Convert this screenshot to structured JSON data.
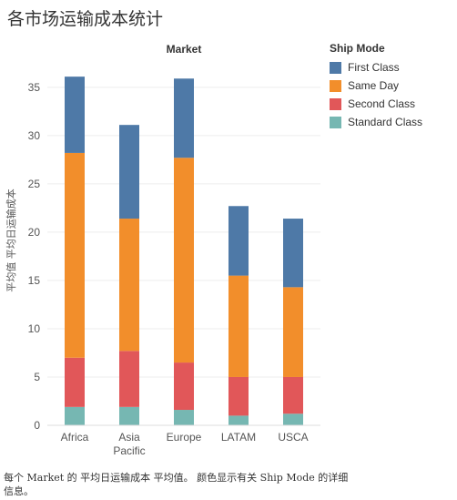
{
  "title": "各市场运输成本统计",
  "caption": "每个 Market 的 平均日运输成本 平均值。 颜色显示有关 Ship Mode 的详细信息。",
  "colors": {
    "First Class": "#4e79a7",
    "Same Day": "#f28e2b",
    "Second Class": "#e15759",
    "Standard Class": "#76b7b2",
    "axis_text": "#555555",
    "grid": "#eeeeee"
  },
  "legend": {
    "title": "Ship Mode",
    "items": [
      {
        "label": "First Class",
        "color": "#4e79a7"
      },
      {
        "label": "Same Day",
        "color": "#f28e2b"
      },
      {
        "label": "Second Class",
        "color": "#e15759"
      },
      {
        "label": "Standard Class",
        "color": "#76b7b2"
      }
    ]
  },
  "chart_data": {
    "type": "bar",
    "stacked": true,
    "title": "Market",
    "xlabel": "",
    "ylabel": "平均值 平均日运输成本",
    "categories": [
      "Africa",
      "Asia Pacific",
      "Europe",
      "LATAM",
      "USCA"
    ],
    "category_lines": [
      [
        "Africa"
      ],
      [
        "Asia",
        "Pacific"
      ],
      [
        "Europe"
      ],
      [
        "LATAM"
      ],
      [
        "USCA"
      ]
    ],
    "ylim": [
      0,
      38
    ],
    "yticks": [
      0,
      5,
      10,
      15,
      20,
      25,
      30,
      35
    ],
    "grid": true,
    "legend_position": "right",
    "series": [
      {
        "name": "Standard Class",
        "values": [
          1.9,
          1.9,
          1.6,
          1.0,
          1.2
        ]
      },
      {
        "name": "Second Class",
        "values": [
          5.1,
          5.8,
          4.9,
          4.0,
          3.8
        ]
      },
      {
        "name": "Same Day",
        "values": [
          21.2,
          13.7,
          21.2,
          10.5,
          9.3
        ]
      },
      {
        "name": "First Class",
        "values": [
          7.9,
          9.7,
          8.2,
          7.2,
          7.1
        ]
      }
    ]
  }
}
